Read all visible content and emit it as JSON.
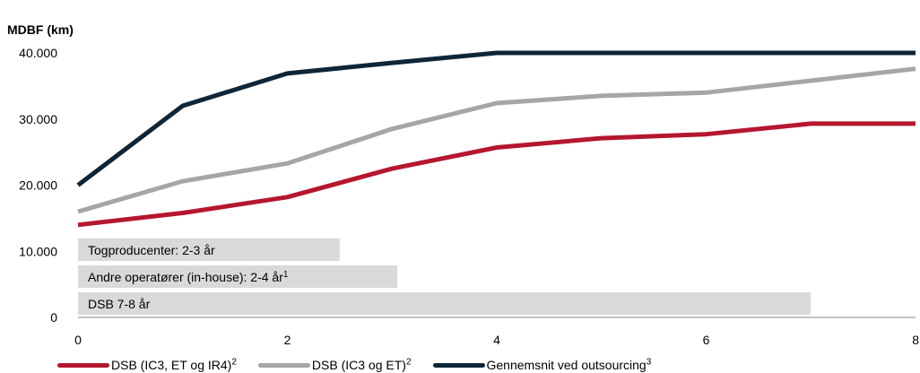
{
  "chart_data": {
    "type": "line",
    "ylabel": "MDBF (km)",
    "xlim": [
      0,
      8
    ],
    "ylim": [
      0,
      40000
    ],
    "x_ticks": [
      0,
      2,
      4,
      6,
      8
    ],
    "y_ticks": [
      0,
      10000,
      20000,
      30000,
      40000
    ],
    "y_tick_labels": [
      "0",
      "10.000",
      "20.000",
      "30.000",
      "40.000"
    ],
    "grid": false,
    "legend_position": "bottom",
    "x": [
      0,
      1,
      2,
      3,
      4,
      5,
      6,
      7,
      8
    ],
    "series": [
      {
        "name": "DSB (IC3, ET og IR4)",
        "sup": "2",
        "color": "#b5172f",
        "values": [
          14000,
          15800,
          18200,
          22500,
          25700,
          27100,
          27700,
          29300,
          29300
        ]
      },
      {
        "name": "DSB (IC3 og ET)",
        "sup": "2",
        "color": "#a6a6a6",
        "values": [
          16000,
          20600,
          23300,
          28500,
          32400,
          33500,
          34000,
          35800,
          37600
        ]
      },
      {
        "name": "Gennemsnit ved  outsourcing",
        "sup": "3",
        "color": "#0f2538",
        "values": [
          20000,
          32000,
          36900,
          38500,
          40000,
          40000,
          40000,
          40000,
          40000
        ]
      }
    ],
    "annotation_bars": [
      {
        "label": "Togproducenter: 2-3 år",
        "x_end": 2.5
      },
      {
        "label": "Andre operatører (in-house): 2-4 år",
        "sup": "1",
        "x_end": 3.05
      },
      {
        "label": "DSB 7-8 år",
        "x_end": 7.0
      }
    ],
    "annotation_bar_color": "#d9d9d9"
  }
}
